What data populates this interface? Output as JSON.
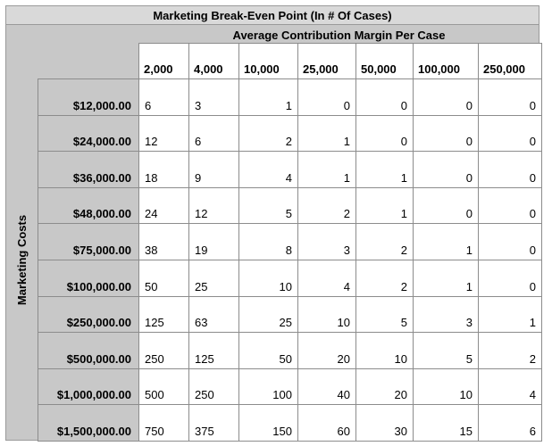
{
  "title": "Marketing Break-Even Point (In # Of Cases)",
  "subtitle": "Average Contribution Margin Per Case",
  "row_axis_label": "Marketing Costs",
  "columns": [
    "2,000",
    "4,000",
    "10,000",
    "25,000",
    "50,000",
    "100,000",
    "250,000"
  ],
  "rows": [
    {
      "label": "$12,000.00",
      "values": [
        "6",
        "3",
        "1",
        "0",
        "0",
        "0",
        "0"
      ]
    },
    {
      "label": "$24,000.00",
      "values": [
        "12",
        "6",
        "2",
        "1",
        "0",
        "0",
        "0"
      ]
    },
    {
      "label": "$36,000.00",
      "values": [
        "18",
        "9",
        "4",
        "1",
        "1",
        "0",
        "0"
      ]
    },
    {
      "label": "$48,000.00",
      "values": [
        "24",
        "12",
        "5",
        "2",
        "1",
        "0",
        "0"
      ]
    },
    {
      "label": "$75,000.00",
      "values": [
        "38",
        "19",
        "8",
        "3",
        "2",
        "1",
        "0"
      ]
    },
    {
      "label": "$100,000.00",
      "values": [
        "50",
        "25",
        "10",
        "4",
        "2",
        "1",
        "0"
      ]
    },
    {
      "label": "$250,000.00",
      "values": [
        "125",
        "63",
        "25",
        "10",
        "5",
        "3",
        "1"
      ]
    },
    {
      "label": "$500,000.00",
      "values": [
        "250",
        "125",
        "50",
        "20",
        "10",
        "5",
        "2"
      ]
    },
    {
      "label": "$1,000,000.00",
      "values": [
        "500",
        "250",
        "100",
        "40",
        "20",
        "10",
        "4"
      ]
    },
    {
      "label": "$1,500,000.00",
      "values": [
        "750",
        "375",
        "150",
        "60",
        "30",
        "15",
        "6"
      ]
    }
  ]
}
